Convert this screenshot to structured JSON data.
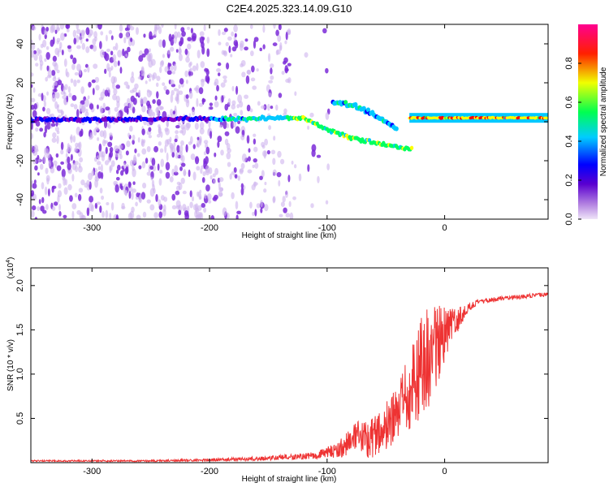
{
  "figure": {
    "title": "C2E4.2025.323.14.09.G10"
  },
  "chart_data": [
    {
      "type": "heatmap",
      "name": "spectrogram",
      "xlabel": "Height of straight line (km)",
      "ylabel": "Frequency (Hz)",
      "xlim": [
        -352,
        88
      ],
      "ylim": [
        -50,
        50
      ],
      "xticks": [
        -300,
        -200,
        -100,
        0
      ],
      "xtick_labels": [
        "-300",
        "-200",
        "-100",
        "0"
      ],
      "yticks": [
        -40,
        -20,
        0,
        20,
        40
      ],
      "ytick_labels": [
        "-40",
        "-20",
        "0",
        "20",
        "40"
      ],
      "colorbar": {
        "label": "Normalized spectral amplitude",
        "ticks": [
          0.0,
          0.2,
          0.4,
          0.6,
          0.8
        ],
        "tick_labels": [
          "0.0",
          "0.2",
          "0.4",
          "0.6",
          "0.8"
        ],
        "range": [
          0,
          1
        ],
        "colors": [
          "#d9c2f0",
          "#7b00c8",
          "#0000ff",
          "#00c8ff",
          "#00ff60",
          "#ffff00",
          "#ff0000",
          "#ff0080"
        ]
      },
      "features": {
        "carrier_frequency_hz": 1,
        "carrier_band": [
          {
            "x": -352,
            "y": 1
          },
          {
            "x": -200,
            "y": 1.5
          },
          {
            "x": -120,
            "y": 2
          },
          {
            "x": -100,
            "y": -4
          },
          {
            "x": -80,
            "y": -8
          },
          {
            "x": -50,
            "y": -12
          },
          {
            "x": -30,
            "y": -14
          }
        ],
        "upper_branch": [
          {
            "x": -95,
            "y": 10
          },
          {
            "x": -75,
            "y": 8
          },
          {
            "x": -55,
            "y": 2
          },
          {
            "x": -40,
            "y": -4
          }
        ],
        "stable_band": {
          "x_start": -30,
          "x_end": 88,
          "y": 2
        }
      }
    },
    {
      "type": "line",
      "name": "snr",
      "xlabel": "Height of straight line (km)",
      "ylabel": "SNR (10 * v/v)",
      "y_multiplier": "(x10",
      "y_multiplier_exp": "4",
      "y_multiplier_close": ")",
      "xlim": [
        -352,
        88
      ],
      "ylim": [
        0,
        2.2
      ],
      "xticks": [
        -300,
        -200,
        -100,
        0
      ],
      "xtick_labels": [
        "-300",
        "-200",
        "-100",
        "0"
      ],
      "yticks": [
        0.5,
        1.0,
        1.5,
        2.0
      ],
      "ytick_labels": [
        "0.5",
        "1.0",
        "1.5",
        "2.0"
      ],
      "color": "#ee3333",
      "envelope": {
        "x": [
          -352,
          -250,
          -200,
          -150,
          -110,
          -90,
          -80,
          -60,
          -45,
          -35,
          -25,
          -18,
          -10,
          0,
          10,
          20,
          30,
          50,
          70,
          88
        ],
        "y_mid": [
          0.02,
          0.02,
          0.03,
          0.05,
          0.08,
          0.15,
          0.25,
          0.3,
          0.45,
          0.65,
          0.95,
          1.15,
          1.25,
          1.45,
          1.6,
          1.75,
          1.82,
          1.86,
          1.88,
          1.9
        ],
        "y_amp": [
          0.008,
          0.01,
          0.015,
          0.025,
          0.04,
          0.09,
          0.18,
          0.25,
          0.3,
          0.4,
          0.55,
          0.6,
          0.55,
          0.3,
          0.15,
          0.05,
          0.03,
          0.025,
          0.025,
          0.025
        ]
      }
    }
  ]
}
